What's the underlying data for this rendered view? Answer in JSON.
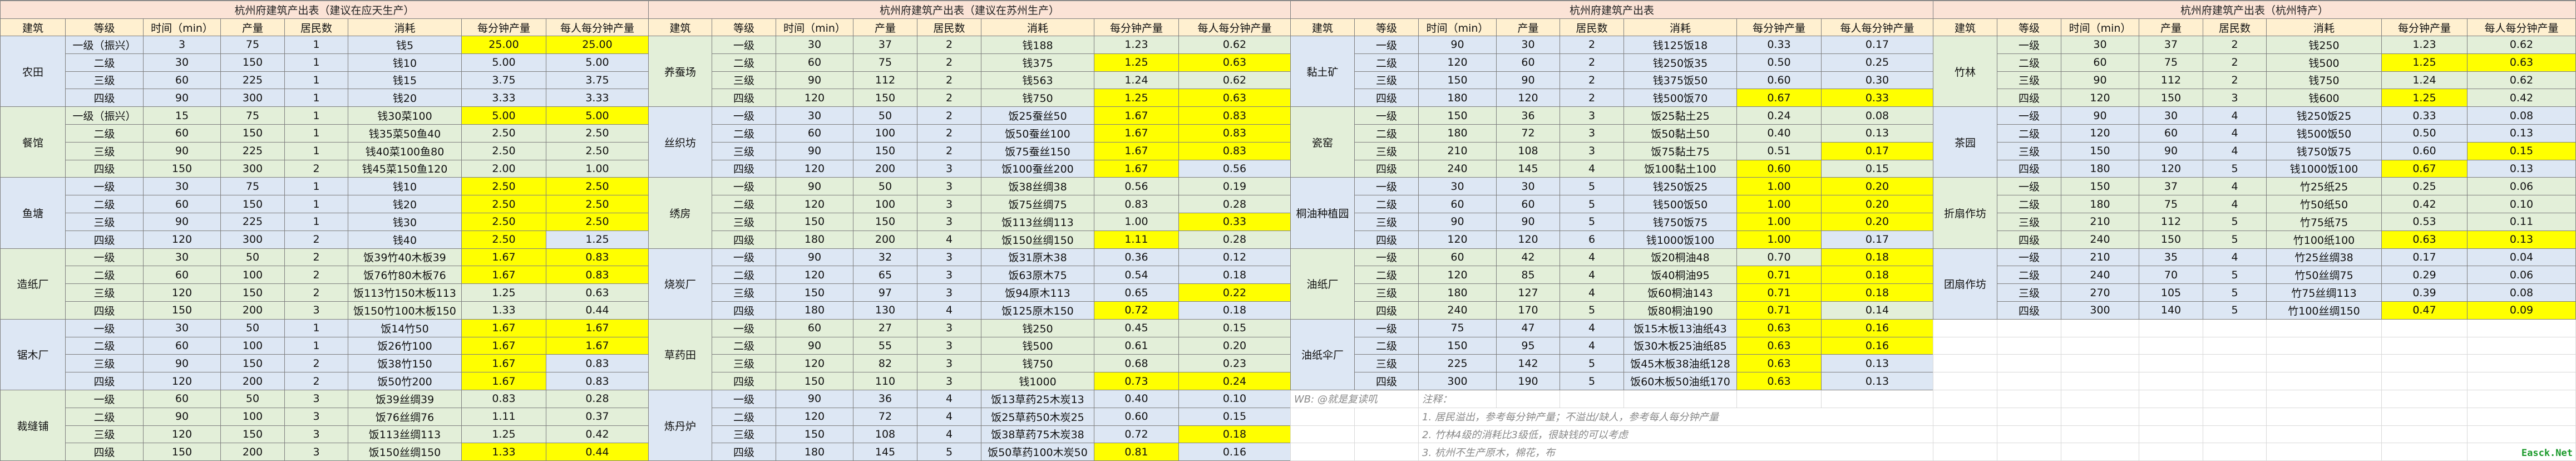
{
  "colors": {
    "blue": "#dde7f4",
    "green": "#e3efd9",
    "yellow": "#ffff00",
    "title_bg": "#fbe3d6",
    "header_bg": "#fff0d0",
    "watermark": "#1a9a2a"
  },
  "columns": [
    "建筑",
    "等级",
    "时间（min）",
    "产量",
    "居民数",
    "消耗",
    "每分钟产量",
    "每人每分钟产量"
  ],
  "tables": [
    {
      "title": "杭州府建筑产出表（建议在应天生产）",
      "groups": [
        {
          "name": "农田",
          "bg": "blue",
          "rows": [
            [
              "一级（振兴）",
              "3",
              "75",
              "1",
              "钱5",
              "25.00",
              "25.00",
              "ab"
            ],
            [
              "二级",
              "30",
              "150",
              "1",
              "钱10",
              "5.00",
              "5.00",
              ""
            ],
            [
              "三级",
              "60",
              "225",
              "1",
              "钱15",
              "3.75",
              "3.75",
              ""
            ],
            [
              "四级",
              "90",
              "300",
              "1",
              "钱20",
              "3.33",
              "3.33",
              ""
            ]
          ]
        },
        {
          "name": "餐馆",
          "bg": "green",
          "rows": [
            [
              "一级（振兴）",
              "15",
              "75",
              "1",
              "钱30菜100",
              "5.00",
              "5.00",
              "ab"
            ],
            [
              "二级",
              "60",
              "150",
              "1",
              "钱35菜50鱼40",
              "2.50",
              "2.50",
              ""
            ],
            [
              "三级",
              "90",
              "225",
              "1",
              "钱40菜100鱼80",
              "2.50",
              "2.50",
              ""
            ],
            [
              "四级",
              "150",
              "300",
              "2",
              "钱45菜150鱼120",
              "2.00",
              "1.00",
              ""
            ]
          ]
        },
        {
          "name": "鱼塘",
          "bg": "blue",
          "rows": [
            [
              "一级",
              "30",
              "75",
              "1",
              "钱10",
              "2.50",
              "2.50",
              "ab"
            ],
            [
              "二级",
              "60",
              "150",
              "1",
              "钱20",
              "2.50",
              "2.50",
              "ab"
            ],
            [
              "三级",
              "90",
              "225",
              "1",
              "钱30",
              "2.50",
              "2.50",
              "ab"
            ],
            [
              "四级",
              "120",
              "300",
              "2",
              "钱40",
              "2.50",
              "1.25",
              "a"
            ]
          ]
        },
        {
          "name": "造纸厂",
          "bg": "green",
          "rows": [
            [
              "一级",
              "30",
              "50",
              "2",
              "饭39竹40木板39",
              "1.67",
              "0.83",
              "ab"
            ],
            [
              "二级",
              "60",
              "100",
              "2",
              "饭76竹80木板76",
              "1.67",
              "0.83",
              "ab"
            ],
            [
              "三级",
              "120",
              "150",
              "2",
              "饭113竹150木板113",
              "1.25",
              "0.63",
              ""
            ],
            [
              "四级",
              "150",
              "200",
              "3",
              "饭150竹100木板150",
              "1.33",
              "0.44",
              ""
            ]
          ]
        },
        {
          "name": "锯木厂",
          "bg": "blue",
          "rows": [
            [
              "一级",
              "30",
              "50",
              "1",
              "饭14竹50",
              "1.67",
              "1.67",
              "ab"
            ],
            [
              "二级",
              "60",
              "100",
              "1",
              "饭26竹100",
              "1.67",
              "1.67",
              "ab"
            ],
            [
              "三级",
              "90",
              "150",
              "2",
              "饭38竹150",
              "1.67",
              "0.83",
              "a"
            ],
            [
              "四级",
              "120",
              "200",
              "2",
              "饭50竹200",
              "1.67",
              "0.83",
              "a"
            ]
          ]
        },
        {
          "name": "裁缝铺",
          "bg": "green",
          "rows": [
            [
              "一级",
              "60",
              "50",
              "3",
              "饭39丝绸39",
              "0.83",
              "0.28",
              ""
            ],
            [
              "二级",
              "90",
              "100",
              "3",
              "饭76丝绸76",
              "1.11",
              "0.37",
              ""
            ],
            [
              "三级",
              "120",
              "150",
              "3",
              "饭113丝绸113",
              "1.25",
              "0.42",
              ""
            ],
            [
              "四级",
              "150",
              "200",
              "3",
              "饭150丝绸150",
              "1.33",
              "0.44",
              "ab"
            ]
          ]
        }
      ]
    },
    {
      "title": "杭州府建筑产出表（建议在苏州生产）",
      "groups": [
        {
          "name": "养蚕场",
          "bg": "green",
          "rows": [
            [
              "一级",
              "30",
              "37",
              "2",
              "钱188",
              "1.23",
              "0.62",
              ""
            ],
            [
              "二级",
              "60",
              "75",
              "2",
              "钱375",
              "1.25",
              "0.63",
              "ab"
            ],
            [
              "三级",
              "90",
              "112",
              "2",
              "钱563",
              "1.24",
              "0.62",
              ""
            ],
            [
              "四级",
              "120",
              "150",
              "2",
              "钱750",
              "1.25",
              "0.63",
              "ab"
            ]
          ]
        },
        {
          "name": "丝织坊",
          "bg": "blue",
          "rows": [
            [
              "一级",
              "30",
              "50",
              "2",
              "饭25蚕丝50",
              "1.67",
              "0.83",
              "ab"
            ],
            [
              "二级",
              "60",
              "100",
              "2",
              "饭50蚕丝100",
              "1.67",
              "0.83",
              "ab"
            ],
            [
              "三级",
              "90",
              "150",
              "2",
              "饭75蚕丝150",
              "1.67",
              "0.83",
              "ab"
            ],
            [
              "四级",
              "120",
              "200",
              "3",
              "饭100蚕丝200",
              "1.67",
              "0.56",
              "a"
            ]
          ]
        },
        {
          "name": "绣房",
          "bg": "green",
          "rows": [
            [
              "一级",
              "90",
              "50",
              "3",
              "饭38丝绸38",
              "0.56",
              "0.19",
              ""
            ],
            [
              "二级",
              "120",
              "100",
              "3",
              "饭75丝绸75",
              "0.83",
              "0.28",
              ""
            ],
            [
              "三级",
              "150",
              "150",
              "3",
              "饭113丝绸113",
              "1.00",
              "0.33",
              "b"
            ],
            [
              "四级",
              "180",
              "200",
              "4",
              "饭150丝绸150",
              "1.11",
              "0.28",
              "a"
            ]
          ]
        },
        {
          "name": "烧炭厂",
          "bg": "blue",
          "rows": [
            [
              "一级",
              "90",
              "32",
              "3",
              "饭31原木38",
              "0.36",
              "0.12",
              ""
            ],
            [
              "二级",
              "120",
              "65",
              "3",
              "饭63原木75",
              "0.54",
              "0.18",
              ""
            ],
            [
              "三级",
              "150",
              "97",
              "3",
              "饭94原木113",
              "0.65",
              "0.22",
              "b"
            ],
            [
              "四级",
              "180",
              "130",
              "4",
              "饭125原木150",
              "0.72",
              "0.18",
              "a"
            ]
          ]
        },
        {
          "name": "草药田",
          "bg": "green",
          "rows": [
            [
              "一级",
              "60",
              "27",
              "3",
              "钱250",
              "0.45",
              "0.15",
              ""
            ],
            [
              "二级",
              "90",
              "55",
              "3",
              "钱500",
              "0.61",
              "0.20",
              ""
            ],
            [
              "三级",
              "120",
              "82",
              "3",
              "钱750",
              "0.68",
              "0.23",
              ""
            ],
            [
              "四级",
              "150",
              "110",
              "3",
              "钱1000",
              "0.73",
              "0.24",
              "ab"
            ]
          ]
        },
        {
          "name": "炼丹炉",
          "bg": "blue",
          "rows": [
            [
              "一级",
              "90",
              "36",
              "4",
              "饭13草药25木炭13",
              "0.40",
              "0.10",
              ""
            ],
            [
              "二级",
              "120",
              "72",
              "4",
              "饭25草药50木炭25",
              "0.60",
              "0.15",
              ""
            ],
            [
              "三级",
              "150",
              "108",
              "4",
              "饭38草药75木炭38",
              "0.72",
              "0.18",
              "b"
            ],
            [
              "四级",
              "180",
              "145",
              "5",
              "饭50草药100木炭50",
              "0.81",
              "0.16",
              "a"
            ]
          ]
        }
      ]
    },
    {
      "title": "杭州府建筑产出表",
      "groups": [
        {
          "name": "黏土矿",
          "bg": "blue",
          "rows": [
            [
              "一级",
              "90",
              "30",
              "2",
              "钱125饭18",
              "0.33",
              "0.17",
              ""
            ],
            [
              "二级",
              "120",
              "60",
              "2",
              "钱250饭35",
              "0.50",
              "0.25",
              ""
            ],
            [
              "三级",
              "150",
              "90",
              "2",
              "钱375饭50",
              "0.60",
              "0.30",
              ""
            ],
            [
              "四级",
              "180",
              "120",
              "2",
              "钱500饭70",
              "0.67",
              "0.33",
              "ab"
            ]
          ]
        },
        {
          "name": "瓷窑",
          "bg": "green",
          "rows": [
            [
              "一级",
              "150",
              "36",
              "3",
              "饭25黏土25",
              "0.24",
              "0.08",
              ""
            ],
            [
              "二级",
              "180",
              "72",
              "3",
              "饭50黏土50",
              "0.40",
              "0.13",
              ""
            ],
            [
              "三级",
              "210",
              "108",
              "3",
              "饭75黏土75",
              "0.51",
              "0.17",
              "b"
            ],
            [
              "四级",
              "240",
              "145",
              "4",
              "饭100黏土100",
              "0.60",
              "0.15",
              "a"
            ]
          ]
        },
        {
          "name": "桐油种植园",
          "bg": "blue",
          "rows": [
            [
              "一级",
              "30",
              "30",
              "5",
              "钱250饭25",
              "1.00",
              "0.20",
              "ab"
            ],
            [
              "二级",
              "60",
              "60",
              "5",
              "钱500饭50",
              "1.00",
              "0.20",
              "ab"
            ],
            [
              "三级",
              "90",
              "90",
              "5",
              "钱750饭75",
              "1.00",
              "0.20",
              "ab"
            ],
            [
              "四级",
              "120",
              "120",
              "6",
              "钱1000饭100",
              "1.00",
              "0.17",
              "a"
            ]
          ]
        },
        {
          "name": "油纸厂",
          "bg": "green",
          "rows": [
            [
              "一级",
              "60",
              "42",
              "4",
              "饭20桐油48",
              "0.70",
              "0.18",
              "b"
            ],
            [
              "二级",
              "120",
              "85",
              "4",
              "饭40桐油95",
              "0.71",
              "0.18",
              "ab"
            ],
            [
              "三级",
              "180",
              "127",
              "4",
              "饭60桐油143",
              "0.71",
              "0.18",
              "ab"
            ],
            [
              "四级",
              "240",
              "170",
              "5",
              "饭80桐油190",
              "0.71",
              "0.14",
              "a"
            ]
          ]
        },
        {
          "name": "油纸伞厂",
          "bg": "blue",
          "rows": [
            [
              "一级",
              "75",
              "47",
              "4",
              "饭15木板13油纸43",
              "0.63",
              "0.16",
              "ab"
            ],
            [
              "二级",
              "150",
              "95",
              "4",
              "饭30木板25油纸85",
              "0.63",
              "0.16",
              "ab"
            ],
            [
              "三级",
              "225",
              "142",
              "5",
              "饭45木板38油纸128",
              "0.63",
              "0.13",
              "a"
            ],
            [
              "四级",
              "300",
              "190",
              "5",
              "饭60木板50油纸170",
              "0.63",
              "0.13",
              "a"
            ]
          ]
        }
      ]
    },
    {
      "title": "杭州府建筑产出表（杭州特产）",
      "groups": [
        {
          "name": "竹林",
          "bg": "green",
          "rows": [
            [
              "一级",
              "30",
              "37",
              "2",
              "钱250",
              "1.23",
              "0.62",
              ""
            ],
            [
              "二级",
              "60",
              "75",
              "2",
              "钱500",
              "1.25",
              "0.63",
              "ab"
            ],
            [
              "三级",
              "90",
              "112",
              "2",
              "钱750",
              "1.24",
              "0.62",
              ""
            ],
            [
              "四级",
              "120",
              "150",
              "3",
              "钱600",
              "1.25",
              "0.42",
              "a"
            ]
          ]
        },
        {
          "name": "茶园",
          "bg": "blue",
          "rows": [
            [
              "一级",
              "90",
              "30",
              "4",
              "钱250饭25",
              "0.33",
              "0.08",
              ""
            ],
            [
              "二级",
              "120",
              "60",
              "4",
              "钱500饭50",
              "0.50",
              "0.13",
              ""
            ],
            [
              "三级",
              "150",
              "90",
              "4",
              "钱750饭75",
              "0.60",
              "0.15",
              "b"
            ],
            [
              "四级",
              "180",
              "120",
              "5",
              "钱1000饭100",
              "0.67",
              "0.13",
              "a"
            ]
          ]
        },
        {
          "name": "折扇作坊",
          "bg": "green",
          "rows": [
            [
              "一级",
              "150",
              "37",
              "4",
              "竹25纸25",
              "0.25",
              "0.06",
              ""
            ],
            [
              "二级",
              "180",
              "75",
              "4",
              "竹50纸50",
              "0.42",
              "0.10",
              ""
            ],
            [
              "三级",
              "210",
              "112",
              "5",
              "竹75纸75",
              "0.53",
              "0.11",
              ""
            ],
            [
              "四级",
              "240",
              "150",
              "5",
              "竹100纸100",
              "0.63",
              "0.13",
              "ab"
            ]
          ]
        },
        {
          "name": "团扇作坊",
          "bg": "blue",
          "rows": [
            [
              "一级",
              "210",
              "35",
              "4",
              "竹25丝绸38",
              "0.17",
              "0.04",
              ""
            ],
            [
              "二级",
              "240",
              "70",
              "5",
              "竹50丝绸75",
              "0.29",
              "0.06",
              ""
            ],
            [
              "三级",
              "270",
              "105",
              "5",
              "竹75丝绸113",
              "0.39",
              "0.08",
              ""
            ],
            [
              "四级",
              "300",
              "140",
              "5",
              "竹100丝绸150",
              "0.47",
              "0.09",
              "ab"
            ]
          ]
        }
      ]
    }
  ],
  "notes": {
    "author": "WB: @就是复读叽",
    "heading": "注释：",
    "items": [
      "1. 居民溢出，参考每分钟产量；不溢出/缺人，参考每人每分钟产量",
      "2. 竹林4级的消耗比3级低，很缺钱的可以考虑",
      "3. 杭州不生产原木，棉花，布"
    ]
  },
  "watermark": "Easck.Net"
}
